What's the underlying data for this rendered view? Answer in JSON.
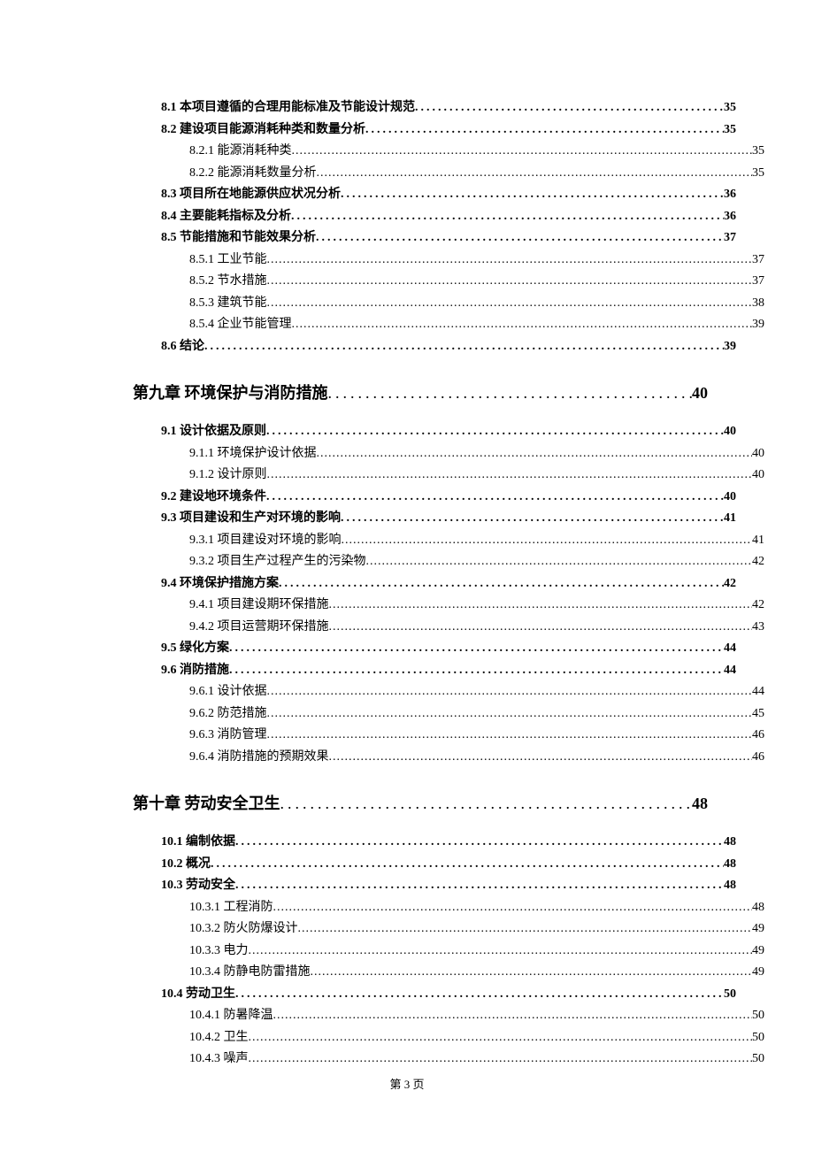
{
  "footer": "第 3 页",
  "colors": {
    "text": "#000000",
    "background": "#ffffff"
  },
  "typography": {
    "chapter_fontsize_pt": 14,
    "section_fontsize_pt": 10.5,
    "subsection_fontsize_pt": 10.5,
    "chapter_font": "KaiTi",
    "body_font": "SimSun"
  },
  "entries": [
    {
      "level": "section",
      "label": "8.1 本项目遵循的合理用能标准及节能设计规范 ",
      "page": " 35"
    },
    {
      "level": "section",
      "label": "8.2 建设项目能源消耗种类和数量分析 ",
      "page": " 35"
    },
    {
      "level": "subsection",
      "label": "8.2.1 能源消耗种类",
      "page": "35"
    },
    {
      "level": "subsection",
      "label": "8.2.2 能源消耗数量分析",
      "page": "35"
    },
    {
      "level": "section",
      "label": "8.3 项目所在地能源供应状况分析 ",
      "page": " 36"
    },
    {
      "level": "section",
      "label": "8.4 主要能耗指标及分析 ",
      "page": " 36"
    },
    {
      "level": "section",
      "label": "8.5 节能措施和节能效果分析 ",
      "page": " 37"
    },
    {
      "level": "subsection",
      "label": "8.5.1 工业节能",
      "page": "37"
    },
    {
      "level": "subsection",
      "label": "8.5.2 节水措施",
      "page": "37"
    },
    {
      "level": "subsection",
      "label": "8.5.3 建筑节能",
      "page": "38"
    },
    {
      "level": "subsection",
      "label": "8.5.4 企业节能管理",
      "page": "39"
    },
    {
      "level": "section",
      "label": "8.6 结论 ",
      "page": " 39"
    },
    {
      "level": "chapter",
      "label": "第九章 环境保护与消防措施 ",
      "page": " 40"
    },
    {
      "level": "section",
      "label": "9.1 设计依据及原则 ",
      "page": " 40"
    },
    {
      "level": "subsection",
      "label": "9.1.1 环境保护设计依据",
      "page": "40"
    },
    {
      "level": "subsection",
      "label": "9.1.2 设计原则",
      "page": "40"
    },
    {
      "level": "section",
      "label": "9.2 建设地环境条件 ",
      "page": " 40"
    },
    {
      "level": "section",
      "label": "9.3  项目建设和生产对环境的影响",
      "page": " 41"
    },
    {
      "level": "subsection",
      "label": "9.3.1  项目建设对环境的影响",
      "page": "41"
    },
    {
      "level": "subsection",
      "label": "9.3.2  项目生产过程产生的污染物",
      "page": "42"
    },
    {
      "level": "section",
      "label": "9.4  环境保护措施方案",
      "page": " 42"
    },
    {
      "level": "subsection",
      "label": "9.4.1  项目建设期环保措施",
      "page": "42"
    },
    {
      "level": "subsection",
      "label": "9.4.2  项目运营期环保措施",
      "page": "43"
    },
    {
      "level": "section",
      "label": "9.5 绿化方案 ",
      "page": " 44"
    },
    {
      "level": "section",
      "label": "9.6 消防措施 ",
      "page": " 44"
    },
    {
      "level": "subsection",
      "label": "9.6.1 设计依据",
      "page": "44"
    },
    {
      "level": "subsection",
      "label": "9.6.2 防范措施",
      "page": "45"
    },
    {
      "level": "subsection",
      "label": "9.6.3 消防管理",
      "page": "46"
    },
    {
      "level": "subsection",
      "label": "9.6.4 消防措施的预期效果",
      "page": "46"
    },
    {
      "level": "chapter",
      "label": "第十章 劳动安全卫生 ",
      "page": " 48"
    },
    {
      "level": "section",
      "label": "10.1  编制依据",
      "page": " 48"
    },
    {
      "level": "section",
      "label": "10.2 概况 ",
      "page": " 48"
    },
    {
      "level": "section",
      "label": "10.3  劳动安全",
      "page": " 48"
    },
    {
      "level": "subsection",
      "label": "10.3.1 工程消防",
      "page": "48"
    },
    {
      "level": "subsection",
      "label": "10.3.2 防火防爆设计",
      "page": "49"
    },
    {
      "level": "subsection",
      "label": "10.3.3 电力",
      "page": "49"
    },
    {
      "level": "subsection",
      "label": "10.3.4 防静电防雷措施",
      "page": "49"
    },
    {
      "level": "section",
      "label": "10.4 劳动卫生 ",
      "page": " 50"
    },
    {
      "level": "subsection",
      "label": "10.4.1 防暑降温",
      "page": "50"
    },
    {
      "level": "subsection",
      "label": "10.4.2 卫生",
      "page": "50"
    },
    {
      "level": "subsection",
      "label": "10.4.3 噪声",
      "page": "50"
    }
  ]
}
